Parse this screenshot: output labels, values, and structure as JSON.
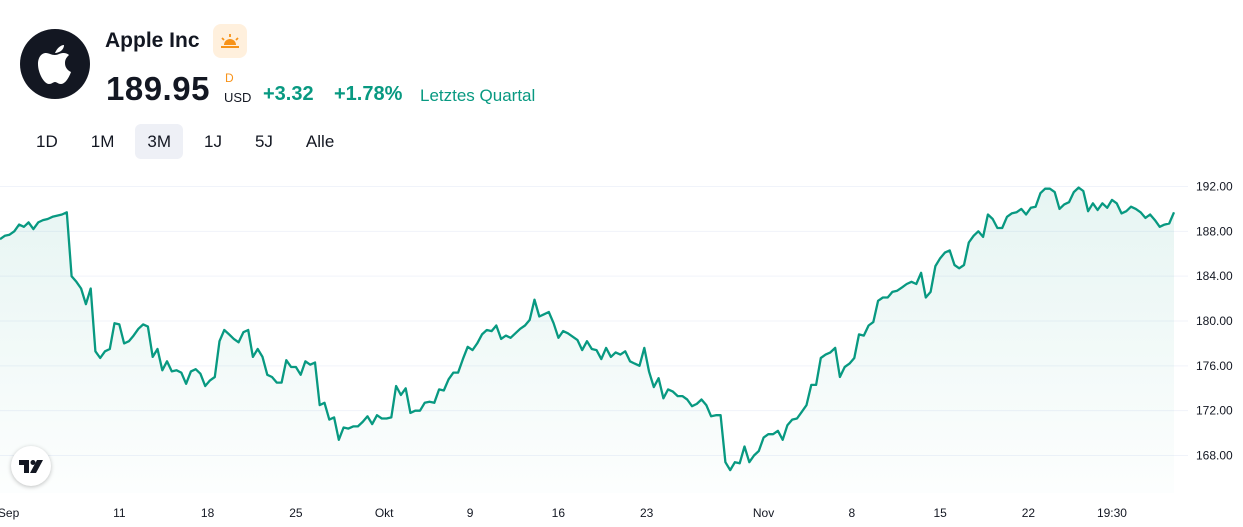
{
  "header": {
    "name": "Apple Inc",
    "price": "189.95",
    "flag": "D",
    "currency": "USD",
    "change": "+3.32",
    "change_percent": "+1.78%",
    "period": "Letztes Quartal",
    "session_icon": "sun-icon",
    "logo_icon": "apple-logo-icon"
  },
  "ranges": [
    {
      "label": "1D",
      "active": false
    },
    {
      "label": "1M",
      "active": false
    },
    {
      "label": "3M",
      "active": true
    },
    {
      "label": "1J",
      "active": false
    },
    {
      "label": "5J",
      "active": false
    },
    {
      "label": "Alle",
      "active": false
    }
  ],
  "colors": {
    "line": "#089981",
    "positive": "#089981",
    "flag": "#f7931a"
  },
  "chart_data": {
    "type": "area",
    "ylim": [
      165.7,
      193.1
    ],
    "y_ticks": [
      "192.00",
      "188.00",
      "184.00",
      "180.00",
      "176.00",
      "172.00",
      "168.00"
    ],
    "y_tick_values": [
      192,
      188,
      184,
      180,
      176,
      172,
      168
    ],
    "x_ticks": [
      "Sep",
      "11",
      "18",
      "25",
      "Okt",
      "9",
      "16",
      "23",
      "Nov",
      "8",
      "15",
      "22",
      "19:30"
    ],
    "x_tick_index": [
      1.8,
      25,
      43.5,
      62,
      80.5,
      98.5,
      117,
      135.5,
      160,
      178.5,
      197,
      215.5,
      233
    ],
    "values": [
      187.3,
      187.6,
      187.7,
      188.0,
      188.6,
      188.4,
      188.8,
      188.2,
      188.8,
      189.0,
      189.1,
      189.3,
      189.4,
      189.5,
      189.7,
      184.0,
      183.5,
      182.9,
      181.5,
      182.9,
      177.3,
      176.7,
      177.3,
      177.5,
      179.8,
      179.7,
      178.0,
      178.2,
      178.7,
      179.3,
      179.7,
      179.5,
      176.8,
      177.5,
      175.6,
      176.4,
      175.5,
      175.6,
      175.4,
      174.4,
      175.5,
      175.7,
      175.3,
      174.2,
      174.7,
      175.0,
      178.2,
      179.2,
      178.8,
      178.4,
      178.1,
      179.0,
      179.2,
      176.8,
      177.5,
      176.8,
      175.2,
      175.0,
      174.5,
      174.5,
      176.5,
      175.9,
      175.9,
      175.2,
      176.4,
      176.1,
      176.3,
      172.5,
      172.7,
      171.2,
      171.4,
      169.4,
      170.5,
      170.4,
      170.6,
      170.6,
      171.0,
      171.5,
      170.8,
      171.6,
      171.3,
      171.3,
      171.4,
      174.2,
      173.4,
      174.0,
      171.8,
      172.0,
      172.0,
      172.7,
      172.8,
      172.7,
      173.9,
      173.8,
      174.8,
      175.4,
      175.4,
      176.6,
      177.7,
      177.4,
      178.0,
      178.8,
      179.2,
      179.1,
      179.6,
      178.4,
      178.7,
      178.5,
      178.9,
      179.3,
      179.6,
      180.1,
      181.9,
      180.4,
      180.6,
      180.8,
      179.8,
      178.5,
      179.1,
      178.9,
      178.6,
      178.3,
      177.4,
      178.2,
      177.5,
      177.4,
      176.6,
      177.6,
      176.8,
      177.2,
      177.0,
      177.3,
      176.4,
      176.2,
      176.0,
      177.6,
      175.5,
      174.1,
      174.9,
      173.1,
      173.9,
      173.7,
      173.3,
      173.3,
      173.0,
      172.4,
      172.6,
      173.0,
      172.5,
      171.5,
      171.6,
      171.6,
      167.4,
      166.7,
      167.4,
      167.3,
      168.8,
      167.4,
      168.0,
      168.4,
      169.6,
      169.9,
      169.9,
      170.2,
      169.4,
      170.7,
      171.2,
      171.3,
      171.9,
      172.5,
      174.3,
      174.3,
      176.7,
      177.0,
      177.2,
      177.6,
      175.0,
      175.9,
      176.2,
      176.7,
      178.8,
      178.7,
      179.6,
      179.9,
      181.8,
      182.1,
      182.1,
      182.6,
      182.7,
      183.0,
      183.3,
      183.5,
      183.3,
      184.3,
      182.1,
      182.6,
      184.9,
      185.6,
      186.1,
      186.3,
      185.0,
      184.7,
      185.0,
      187.0,
      187.6,
      188.0,
      187.5,
      189.5,
      189.1,
      188.3,
      188.3,
      189.3,
      189.6,
      189.7,
      190.0,
      189.5,
      190.1,
      190.2,
      191.4,
      191.8,
      191.8,
      191.5,
      190.0,
      190.4,
      190.6,
      191.5,
      191.9,
      191.6,
      189.8,
      190.5,
      189.9,
      190.5,
      190.1,
      190.8,
      190.5,
      189.6,
      189.8,
      190.2,
      190.0,
      189.7,
      189.2,
      189.5,
      189.0,
      188.4,
      188.6,
      188.7,
      189.7
    ]
  }
}
